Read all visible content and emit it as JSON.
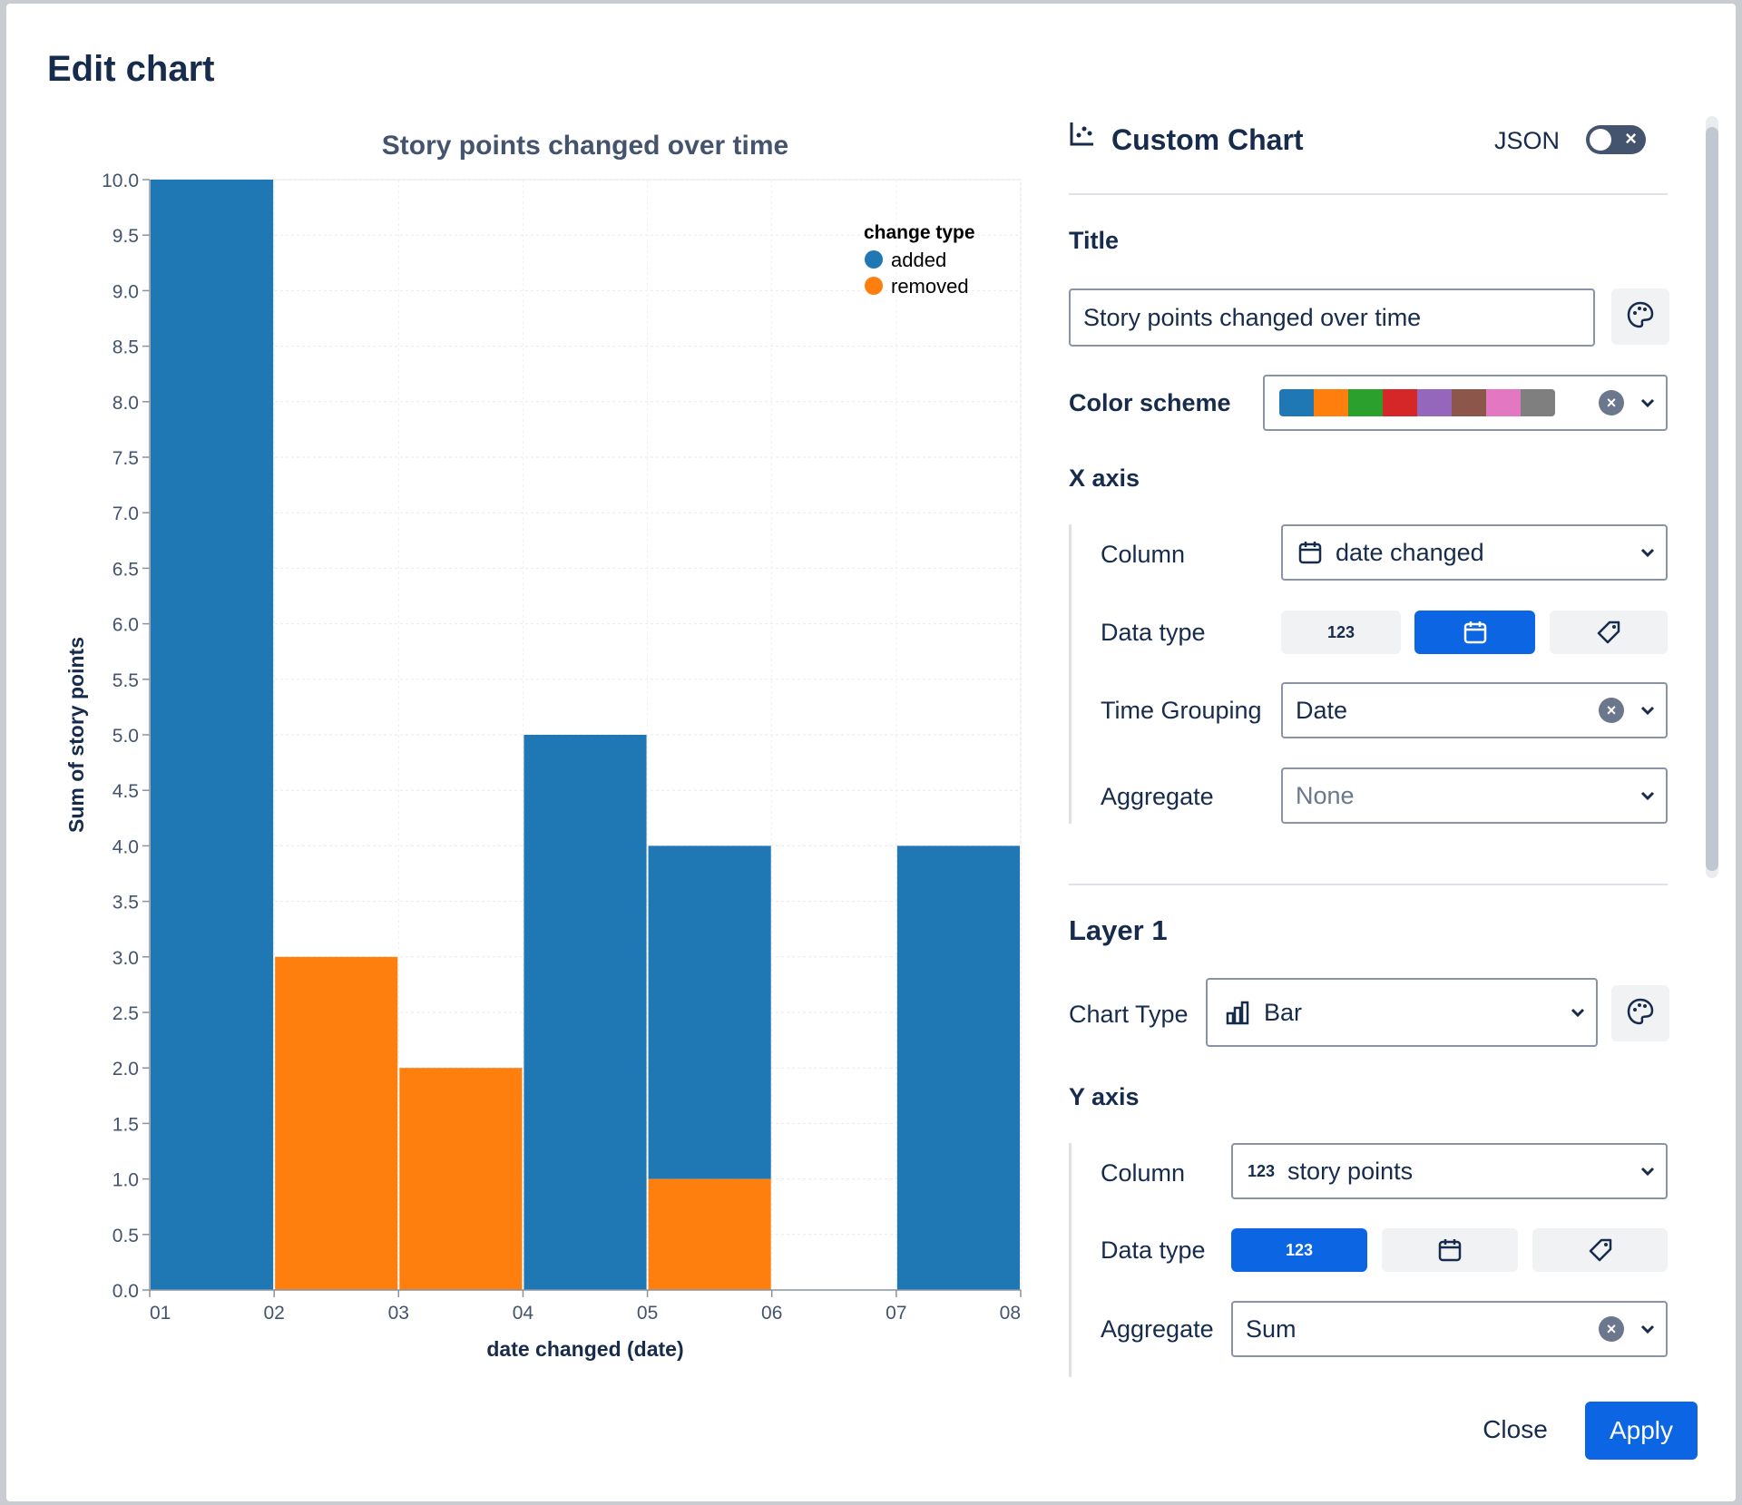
{
  "modal": {
    "title": "Edit chart"
  },
  "panel": {
    "header": {
      "icon": "chart-icon",
      "title": "Custom Chart",
      "json_label": "JSON",
      "json_toggle": "off"
    },
    "title_section": {
      "label": "Title",
      "value": "Story points changed over time",
      "style_icon": "palette-icon"
    },
    "color_scheme": {
      "label": "Color scheme",
      "colors": [
        "#1f77b4",
        "#ff7f0e",
        "#2ca02c",
        "#d62728",
        "#9467bd",
        "#8c564b",
        "#e377c2",
        "#7f7f7f"
      ]
    },
    "x_axis": {
      "label": "X axis",
      "column_label": "Column",
      "column_value": "date changed",
      "column_icon": "calendar-icon",
      "data_type_label": "Data type",
      "data_types": [
        {
          "label": "123",
          "icon": "number-icon",
          "active": false
        },
        {
          "label": "",
          "icon": "calendar-icon",
          "active": true
        },
        {
          "label": "",
          "icon": "tag-icon",
          "active": false
        }
      ],
      "time_grouping_label": "Time Grouping",
      "time_grouping_value": "Date",
      "aggregate_label": "Aggregate",
      "aggregate_placeholder": "None"
    },
    "layer": {
      "title": "Layer 1",
      "chart_type_label": "Chart Type",
      "chart_type_value": "Bar",
      "chart_type_icon": "bar-chart-icon",
      "style_icon": "palette-icon"
    },
    "y_axis": {
      "label": "Y axis",
      "column_label": "Column",
      "column_prefix": "123",
      "column_value": "story points",
      "data_type_label": "Data type",
      "data_types": [
        {
          "label": "123",
          "icon": "number-icon",
          "active": true
        },
        {
          "label": "",
          "icon": "calendar-icon",
          "active": false
        },
        {
          "label": "",
          "icon": "tag-icon",
          "active": false
        }
      ],
      "aggregate_label": "Aggregate",
      "aggregate_value": "Sum"
    }
  },
  "footer": {
    "close_label": "Close",
    "apply_label": "Apply"
  },
  "chart_data": {
    "type": "bar",
    "title": "Story points changed over time",
    "xlabel": "date changed (date)",
    "ylabel": "Sum of story points",
    "x_ticks": [
      "01",
      "02",
      "03",
      "04",
      "05",
      "06",
      "07",
      "08"
    ],
    "ylim": [
      0,
      10
    ],
    "y_ticks": [
      "0.0",
      "0.5",
      "1.0",
      "1.5",
      "2.0",
      "2.5",
      "3.0",
      "3.5",
      "4.0",
      "4.5",
      "5.0",
      "5.5",
      "6.0",
      "6.5",
      "7.0",
      "7.5",
      "8.0",
      "8.5",
      "9.0",
      "9.5",
      "10.0"
    ],
    "legend": {
      "title": "change type",
      "placement": "top-right"
    },
    "series": [
      {
        "name": "added",
        "color": "#1f77b4",
        "bars": [
          {
            "x": "01",
            "base": 0,
            "value": 10
          },
          {
            "x": "04",
            "base": 0,
            "value": 5
          },
          {
            "x": "05",
            "base": 1,
            "value": 3
          },
          {
            "x": "07",
            "base": 0,
            "value": 4
          }
        ]
      },
      {
        "name": "removed",
        "color": "#ff7f0e",
        "bars": [
          {
            "x": "02",
            "base": 0,
            "value": 3
          },
          {
            "x": "03",
            "base": 0,
            "value": 2
          },
          {
            "x": "05",
            "base": 0,
            "value": 1
          }
        ]
      }
    ],
    "grid": true
  }
}
